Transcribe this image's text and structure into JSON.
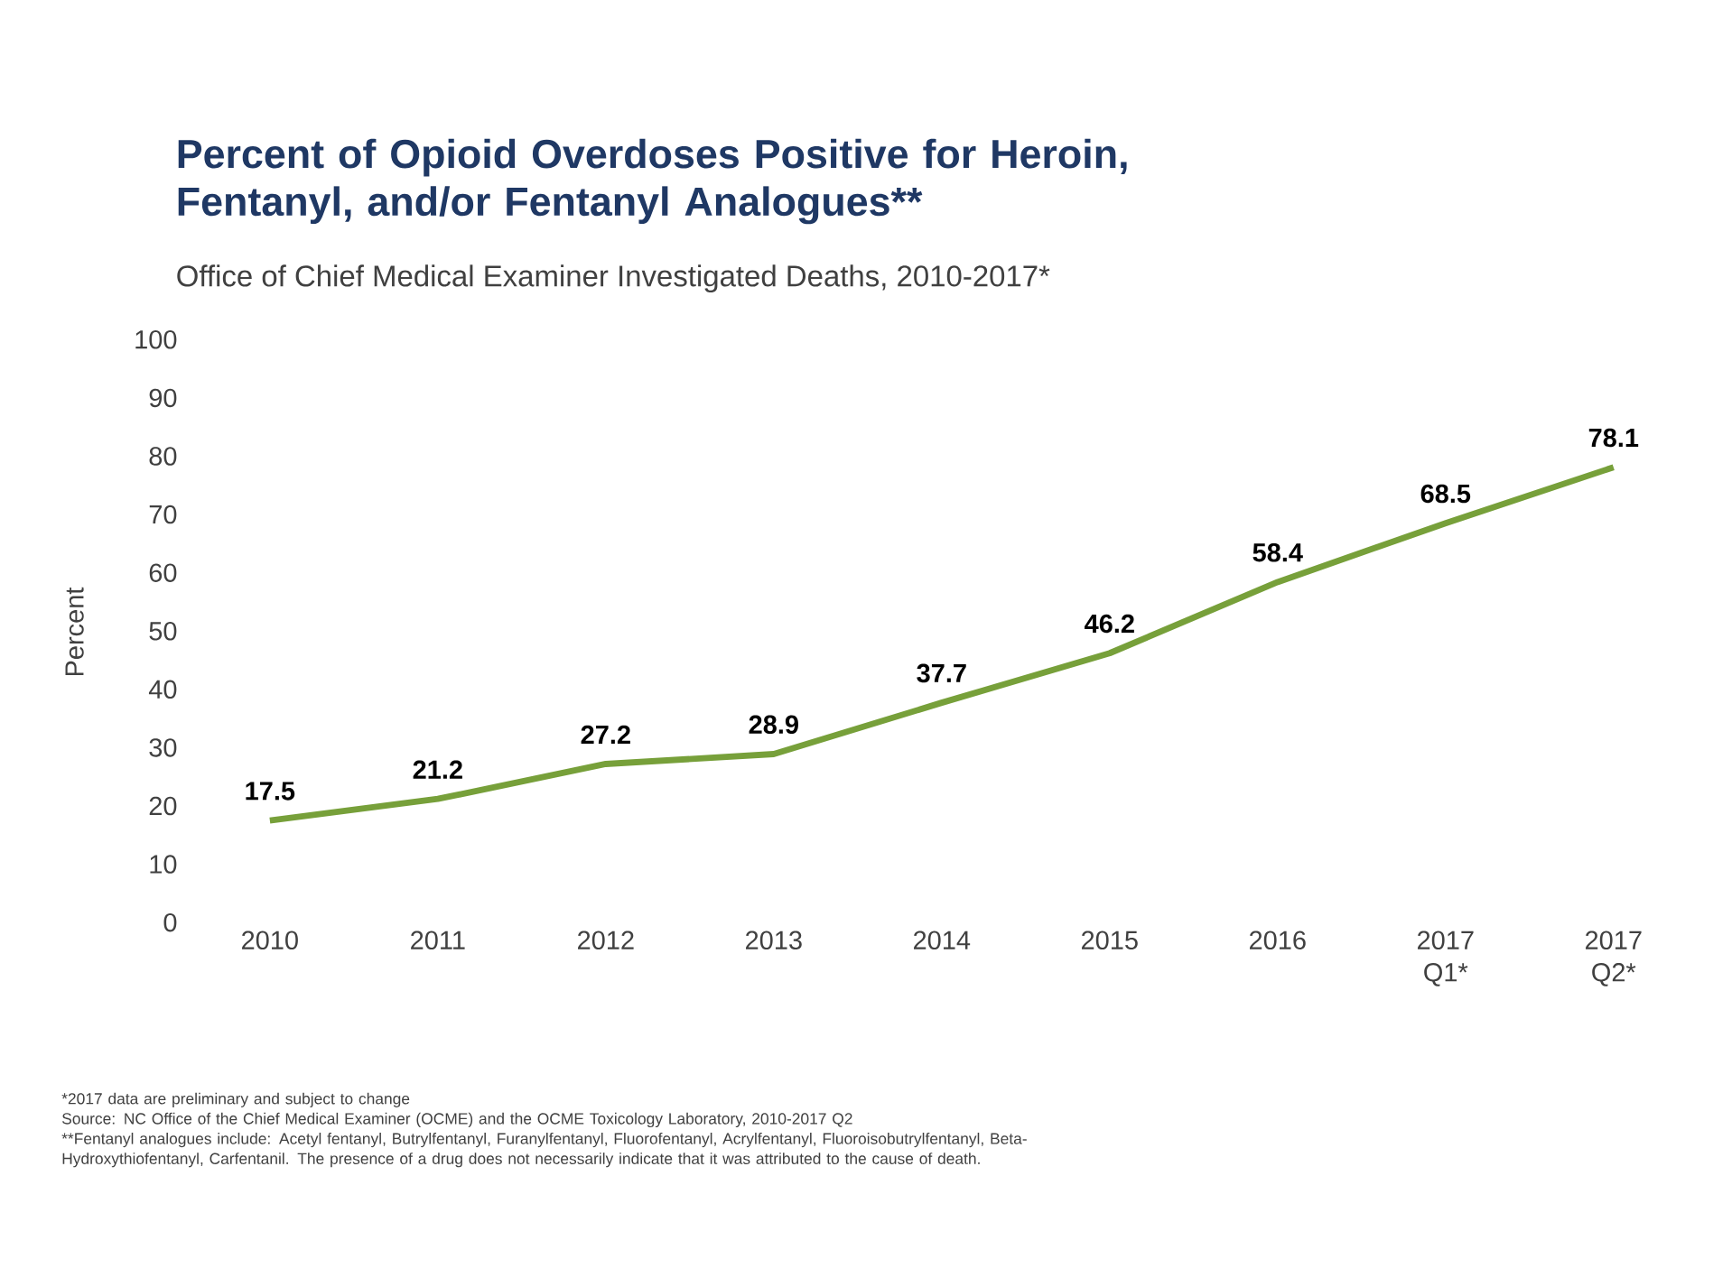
{
  "chart_data": {
    "type": "line",
    "title": "Percent of Opioid Overdoses Positive for Heroin, Fentanyl, and/or Fentanyl Analogues**",
    "subtitle": "Office of Chief Medical Examiner Investigated Deaths, 2010-2017*",
    "ylabel": "Percent",
    "categories": [
      "2010",
      "2011",
      "2012",
      "2013",
      "2014",
      "2015",
      "2016",
      "2017 Q1*",
      "2017 Q2*"
    ],
    "values": [
      17.5,
      21.2,
      27.2,
      28.9,
      37.7,
      46.2,
      58.4,
      68.5,
      78.1
    ],
    "color": "#77a03a",
    "ylim": [
      0,
      100
    ],
    "yticks": [
      0,
      10,
      20,
      30,
      40,
      50,
      60,
      70,
      80,
      90,
      100
    ],
    "grid": false,
    "marker": "none",
    "line_style": "solid",
    "data_labels": true,
    "annotations": [
      "*2017 data are preliminary and subject to change",
      "Source: NC Office of the Chief Medical Examiner (OCME) and the OCME Toxicology Laboratory, 2010-2017 Q2",
      "**Fentanyl analogues include: Acetyl fentanyl, Butrylfentanyl, Furanylfentanyl, Fluorofentanyl, Acrylfentanyl, Fluoroisobutrylfentanyl, Beta-Hydroxythiofentanyl, Carfentanil. The presence of a drug does not necessarily indicate that it was attributed to the cause of death."
    ]
  }
}
